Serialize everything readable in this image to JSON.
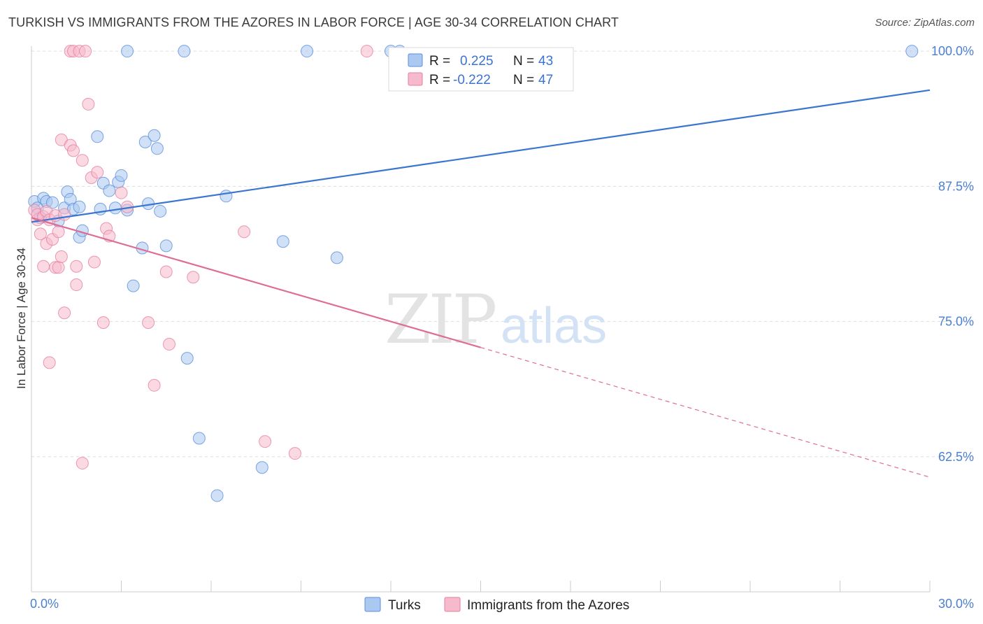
{
  "header": {
    "title": "TURKISH VS IMMIGRANTS FROM THE AZORES IN LABOR FORCE | AGE 30-34 CORRELATION CHART",
    "source": "Source: ZipAtlas.com"
  },
  "watermark": {
    "zip": "ZIP",
    "atlas": "atlas"
  },
  "colors": {
    "turks_fill": "#aac8f0",
    "turks_stroke": "#5b8fdb",
    "turks_line": "#3a76d0",
    "azores_fill": "#f7b9cc",
    "azores_stroke": "#e57fa0",
    "azores_line": "#de6d96",
    "grid": "#dddddd",
    "tick_label": "#4a7fd4"
  },
  "stats_legend": {
    "rows": [
      {
        "r_label": "R =",
        "r_value": "0.225",
        "n_label": "N =",
        "n_value": "43"
      },
      {
        "r_label": "R =",
        "r_value": "-0.222",
        "n_label": "N =",
        "n_value": "47"
      }
    ]
  },
  "chart_data": {
    "type": "scatter",
    "title": "TURKISH VS IMMIGRANTS FROM THE AZORES IN LABOR FORCE | AGE 30-34 CORRELATION CHART",
    "xlabel": "",
    "ylabel": "In Labor Force | Age 30-34",
    "xlim": [
      0,
      30
    ],
    "ylim": [
      50,
      101.5
    ],
    "x_tick_labels": [
      "0.0%",
      "30.0%"
    ],
    "y_ticks": [
      62.5,
      75.0,
      87.5,
      100.0
    ],
    "y_tick_labels": [
      "62.5%",
      "75.0%",
      "87.5%",
      "100.0%"
    ],
    "grid": true,
    "legend": [
      "Turks",
      "Immigrants from the Azores"
    ],
    "series": [
      {
        "name": "Turks",
        "r": 0.225,
        "n": 43,
        "trend": {
          "x": [
            0.0,
            30.0
          ],
          "y": [
            84.2,
            96.4
          ],
          "dashed_from": null
        },
        "points": [
          [
            0.1,
            86.1
          ],
          [
            0.2,
            85.5
          ],
          [
            0.3,
            84.6
          ],
          [
            0.4,
            86.4
          ],
          [
            0.5,
            86.1
          ],
          [
            0.7,
            86.0
          ],
          [
            0.9,
            84.3
          ],
          [
            1.1,
            85.5
          ],
          [
            1.2,
            87.0
          ],
          [
            1.3,
            86.3
          ],
          [
            1.4,
            85.4
          ],
          [
            1.6,
            82.8
          ],
          [
            1.6,
            85.6
          ],
          [
            1.7,
            83.4
          ],
          [
            2.2,
            92.1
          ],
          [
            2.3,
            85.4
          ],
          [
            2.4,
            87.8
          ],
          [
            2.6,
            87.1
          ],
          [
            2.8,
            85.5
          ],
          [
            2.9,
            87.9
          ],
          [
            3.0,
            88.5
          ],
          [
            3.2,
            85.3
          ],
          [
            3.2,
            100.0
          ],
          [
            3.4,
            78.3
          ],
          [
            3.7,
            81.8
          ],
          [
            3.8,
            91.6
          ],
          [
            3.9,
            85.9
          ],
          [
            4.1,
            92.2
          ],
          [
            4.2,
            91.0
          ],
          [
            4.3,
            85.2
          ],
          [
            4.5,
            82.0
          ],
          [
            5.1,
            100.0
          ],
          [
            5.2,
            71.6
          ],
          [
            5.6,
            64.2
          ],
          [
            6.5,
            86.6
          ],
          [
            6.2,
            58.9
          ],
          [
            7.7,
            61.5
          ],
          [
            8.4,
            82.4
          ],
          [
            9.2,
            100.0
          ],
          [
            10.2,
            80.9
          ],
          [
            12.0,
            100.0
          ],
          [
            12.3,
            100.0
          ],
          [
            29.4,
            100.0
          ]
        ]
      },
      {
        "name": "Immigrants from the Azores",
        "r": -0.222,
        "n": 47,
        "trend": {
          "x": [
            0.0,
            30.0
          ],
          "y": [
            84.6,
            60.6
          ],
          "dashed_from": 15.0
        },
        "points": [
          [
            0.1,
            85.3
          ],
          [
            0.2,
            84.4
          ],
          [
            0.2,
            84.9
          ],
          [
            0.3,
            83.1
          ],
          [
            0.4,
            84.7
          ],
          [
            0.4,
            80.1
          ],
          [
            0.5,
            85.2
          ],
          [
            0.5,
            82.2
          ],
          [
            0.6,
            84.4
          ],
          [
            0.6,
            71.2
          ],
          [
            0.7,
            82.6
          ],
          [
            0.8,
            80.0
          ],
          [
            0.8,
            84.8
          ],
          [
            0.9,
            80.0
          ],
          [
            0.9,
            83.3
          ],
          [
            1.0,
            91.8
          ],
          [
            1.0,
            81.0
          ],
          [
            1.1,
            84.9
          ],
          [
            1.1,
            75.8
          ],
          [
            1.3,
            91.3
          ],
          [
            1.3,
            100.0
          ],
          [
            1.4,
            90.8
          ],
          [
            1.4,
            100.0
          ],
          [
            1.5,
            80.1
          ],
          [
            1.5,
            78.4
          ],
          [
            1.6,
            100.0
          ],
          [
            1.7,
            89.9
          ],
          [
            1.7,
            61.9
          ],
          [
            1.8,
            100.0
          ],
          [
            1.9,
            95.1
          ],
          [
            2.0,
            88.3
          ],
          [
            2.1,
            80.5
          ],
          [
            2.2,
            88.8
          ],
          [
            2.4,
            74.9
          ],
          [
            2.5,
            83.6
          ],
          [
            2.6,
            82.9
          ],
          [
            3.0,
            86.9
          ],
          [
            3.2,
            85.6
          ],
          [
            3.9,
            74.9
          ],
          [
            4.1,
            69.1
          ],
          [
            4.5,
            79.6
          ],
          [
            4.6,
            72.9
          ],
          [
            5.4,
            79.1
          ],
          [
            7.1,
            83.3
          ],
          [
            7.8,
            63.9
          ],
          [
            8.8,
            62.8
          ],
          [
            11.2,
            100.0
          ]
        ]
      }
    ]
  },
  "bottom_legend": {
    "items": [
      {
        "label": "Turks"
      },
      {
        "label": "Immigrants from the Azores"
      }
    ]
  }
}
